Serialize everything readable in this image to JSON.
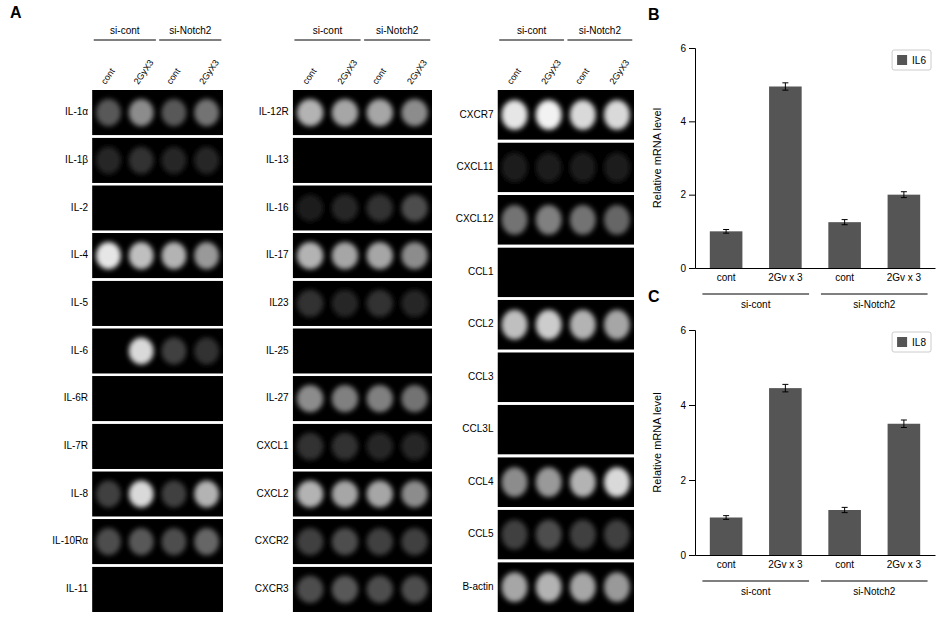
{
  "chart_data": [
    {
      "type": "heatmap",
      "title": "A",
      "categories": [
        "cont",
        "2GyX3",
        "cont",
        "2GyX3"
      ],
      "annotations": [
        "si-cont",
        "si-Notch2"
      ],
      "rows": [
        "IL-1α",
        "IL-1β",
        "IL-2",
        "IL-4",
        "IL-5",
        "IL-6",
        "IL-6R",
        "IL-7R",
        "IL-8",
        "IL-10Rα",
        "IL-11"
      ],
      "cells": [
        [
          0.35,
          0.55,
          0.35,
          0.45
        ],
        [
          0.15,
          0.2,
          0.15,
          0.15
        ],
        [
          0.0,
          0.0,
          0.0,
          0.0
        ],
        [
          0.9,
          0.75,
          0.7,
          0.6
        ],
        [
          0.0,
          0.0,
          0.0,
          0.0
        ],
        [
          0.0,
          0.85,
          0.25,
          0.2
        ],
        [
          0.0,
          0.0,
          0.0,
          0.0
        ],
        [
          0.0,
          0.0,
          0.0,
          0.0
        ],
        [
          0.25,
          0.85,
          0.25,
          0.7
        ],
        [
          0.3,
          0.35,
          0.3,
          0.4
        ],
        [
          0.0,
          0.0,
          0.0,
          0.0
        ]
      ]
    },
    {
      "type": "heatmap",
      "categories": [
        "cont",
        "2GyX3",
        "cont",
        "2GyX3"
      ],
      "annotations": [
        "si-cont",
        "si-Notch2"
      ],
      "rows": [
        "IL-12R",
        "IL-13",
        "IL-16",
        "IL-17",
        "IL23",
        "IL-25",
        "IL-27",
        "CXCL1",
        "CXCL2",
        "CXCR2",
        "CXCR3"
      ],
      "cells": [
        [
          0.7,
          0.65,
          0.65,
          0.55
        ],
        [
          0.0,
          0.0,
          0.0,
          0.0
        ],
        [
          0.1,
          0.15,
          0.2,
          0.3
        ],
        [
          0.7,
          0.65,
          0.65,
          0.55
        ],
        [
          0.2,
          0.15,
          0.2,
          0.15
        ],
        [
          0.0,
          0.0,
          0.0,
          0.0
        ],
        [
          0.55,
          0.5,
          0.5,
          0.45
        ],
        [
          0.2,
          0.2,
          0.15,
          0.15
        ],
        [
          0.7,
          0.65,
          0.65,
          0.55
        ],
        [
          0.25,
          0.3,
          0.25,
          0.25
        ],
        [
          0.3,
          0.35,
          0.3,
          0.3
        ]
      ]
    },
    {
      "type": "heatmap",
      "categories": [
        "cont",
        "2GyX3",
        "cont",
        "2GyX3"
      ],
      "annotations": [
        "si-cont",
        "si-Notch2"
      ],
      "rows": [
        "CXCR7",
        "CXCL11",
        "CXCL12",
        "CCL1",
        "CCL2",
        "CCL3",
        "CCL3L",
        "CCL4",
        "CCL5",
        "B-actin"
      ],
      "cells": [
        [
          0.9,
          0.95,
          0.85,
          0.85
        ],
        [
          0.1,
          0.1,
          0.1,
          0.1
        ],
        [
          0.45,
          0.5,
          0.45,
          0.4
        ],
        [
          0.0,
          0.0,
          0.0,
          0.0
        ],
        [
          0.75,
          0.8,
          0.7,
          0.65
        ],
        [
          0.0,
          0.0,
          0.0,
          0.0
        ],
        [
          0.0,
          0.0,
          0.0,
          0.0
        ],
        [
          0.55,
          0.6,
          0.7,
          0.85
        ],
        [
          0.25,
          0.3,
          0.25,
          0.25
        ],
        [
          0.65,
          0.7,
          0.65,
          0.6
        ]
      ]
    },
    {
      "type": "bar",
      "title": "B",
      "categories": [
        "cont",
        "2Gv x 3",
        "cont",
        "2Gv x 3"
      ],
      "annotations": [
        "si-cont",
        "si-Notch2"
      ],
      "series": [
        {
          "name": "IL6",
          "color": "#555555",
          "values": [
            1.0,
            4.95,
            1.25,
            2.0
          ],
          "errors": [
            0.05,
            0.1,
            0.07,
            0.08
          ]
        }
      ],
      "ylabel": "Relative mRNA level",
      "ylim": [
        0,
        6
      ],
      "yticks": [
        0,
        2,
        4,
        6
      ],
      "legend": "upper right"
    },
    {
      "type": "bar",
      "title": "C",
      "categories": [
        "cont",
        "2Gv x 3",
        "cont",
        "2Gv x 3"
      ],
      "annotations": [
        "si-cont",
        "si-Notch2"
      ],
      "series": [
        {
          "name": "IL8",
          "color": "#555555",
          "values": [
            1.0,
            4.45,
            1.2,
            3.5
          ],
          "errors": [
            0.05,
            0.1,
            0.07,
            0.1
          ]
        }
      ],
      "ylabel": "Relative mRNA level",
      "ylim": [
        0,
        6
      ],
      "yticks": [
        0,
        2,
        4,
        6
      ],
      "legend": "upper right"
    }
  ]
}
